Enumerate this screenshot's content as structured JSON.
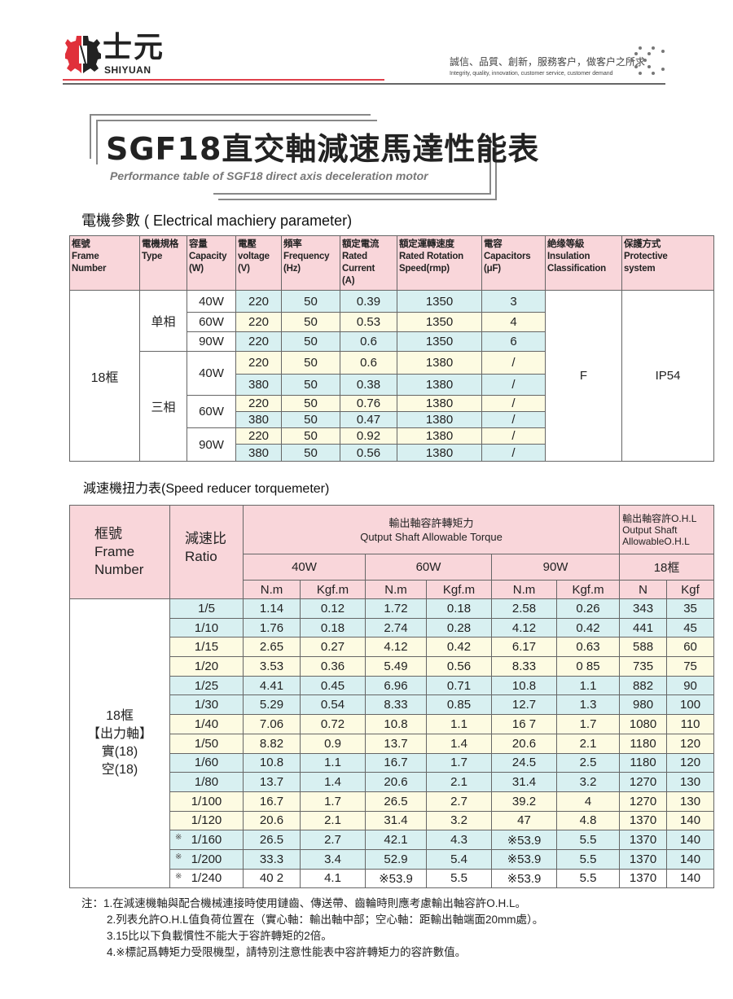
{
  "brand": {
    "name_cn": "士元",
    "name_en": "SHIYUAN",
    "slogan_cn": "誠信、品質、創新，服務客户，做客户之所求",
    "slogan_en": "Integrity, quality, innovation, customer service, customer demand",
    "colors": {
      "red": "#e0404a",
      "dark": "#222222"
    }
  },
  "title": {
    "cn": "SGF18直交軸減速馬達性能表",
    "en": "Performance table of SGF18 direct axis deceleration motor"
  },
  "electrical": {
    "section_title": "電機參數 ( Electrical machiery parameter)",
    "headers": [
      [
        "框號",
        "Frame",
        "Number"
      ],
      [
        "電機規格",
        "Type"
      ],
      [
        "容量",
        "Capacity",
        "(W)"
      ],
      [
        "電壓",
        "voltage",
        "(V)"
      ],
      [
        "頻率",
        "Frequency",
        "(Hz)"
      ],
      [
        "額定電流",
        "Rated",
        "Current",
        "(A)"
      ],
      [
        "額定運轉速度",
        "Rated Rotation",
        "Speed(rmp)"
      ],
      [
        "電容",
        "Capacitors",
        "(μF)"
      ],
      [
        "絶缘等級",
        "Insulation",
        "Classification"
      ],
      [
        "保護方式",
        "Protective",
        "system"
      ]
    ],
    "frame": "18框",
    "insulation": "F",
    "protection": "IP54",
    "phases": [
      {
        "label": "单相",
        "capacities": [
          {
            "label": "40W",
            "rows": [
              {
                "v": "220",
                "f": "50",
                "a": "0.39",
                "s": "1350",
                "c": "3",
                "color": "blue"
              }
            ]
          },
          {
            "label": "60W",
            "rows": [
              {
                "v": "220",
                "f": "50",
                "a": "0.53",
                "s": "1350",
                "c": "4",
                "color": "yel"
              }
            ]
          },
          {
            "label": "90W",
            "rows": [
              {
                "v": "220",
                "f": "50",
                "a": "0.6",
                "s": "1350",
                "c": "6",
                "color": "blue"
              }
            ]
          }
        ]
      },
      {
        "label": "三相",
        "capacities": [
          {
            "label": "40W",
            "rows": [
              {
                "v": "220",
                "f": "50",
                "a": "0.6",
                "s": "1380",
                "c": "/",
                "color": "yel"
              },
              {
                "v": "380",
                "f": "50",
                "a": "0.38",
                "s": "1380",
                "c": "/",
                "color": "blue"
              }
            ]
          },
          {
            "label": "60W",
            "rows": [
              {
                "v": "220",
                "f": "50",
                "a": "0.76",
                "s": "1380",
                "c": "/",
                "color": "yel"
              },
              {
                "v": "380",
                "f": "50",
                "a": "0.47",
                "s": "1380",
                "c": "/",
                "color": "blue"
              }
            ]
          },
          {
            "label": "90W",
            "rows": [
              {
                "v": "220",
                "f": "50",
                "a": "0.92",
                "s": "1380",
                "c": "/",
                "color": "yel"
              },
              {
                "v": "380",
                "f": "50",
                "a": "0.56",
                "s": "1380",
                "c": "/",
                "color": "blue"
              }
            ]
          }
        ]
      }
    ]
  },
  "torque": {
    "section_title": "減速機扭力表(Speed reducer torquemeter)",
    "h_frame": [
      "框號",
      "Frame",
      "Number"
    ],
    "h_ratio": [
      "減速比",
      "Ratio"
    ],
    "h_torque": [
      "輸出軸容許轉矩力",
      "Qutput Shaft Allowable Torque"
    ],
    "h_ohl": [
      "輸出軸容許O.H.L",
      "Output Shaft",
      "AllowableO.H.L"
    ],
    "powers": [
      "40W",
      "60W",
      "90W"
    ],
    "ohl_frame": "18框",
    "units": [
      "N.m",
      "Kgf.m",
      "N.m",
      "Kgf.m",
      "N.m",
      "Kgf.m",
      "N",
      "Kgf"
    ],
    "frame_label": [
      "18框",
      "【出力軸】",
      "實(18)",
      "空(18)"
    ],
    "rows": [
      {
        "mark": "",
        "ratio": "1/5",
        "vals": [
          "1.14",
          "0.12",
          "1.72",
          "0.18",
          "2.58",
          "0.26",
          "343",
          "35"
        ],
        "color": "blue"
      },
      {
        "mark": "",
        "ratio": "1/10",
        "vals": [
          "1.76",
          "0.18",
          "2.74",
          "0.28",
          "4.12",
          "0.42",
          "441",
          "45"
        ],
        "color": "blue"
      },
      {
        "mark": "",
        "ratio": "1/15",
        "vals": [
          "2.65",
          "0.27",
          "4.12",
          "0.42",
          "6.17",
          "0.63",
          "588",
          "60"
        ],
        "color": "yel"
      },
      {
        "mark": "",
        "ratio": "1/20",
        "vals": [
          "3.53",
          "0.36",
          "5.49",
          "0.56",
          "8.33",
          "0 85",
          "735",
          "75"
        ],
        "color": "yel"
      },
      {
        "mark": "",
        "ratio": "1/25",
        "vals": [
          "4.41",
          "0.45",
          "6.96",
          "0.71",
          "10.8",
          "1.1",
          "882",
          "90"
        ],
        "color": "blue"
      },
      {
        "mark": "",
        "ratio": "1/30",
        "vals": [
          "5.29",
          "0.54",
          "8.33",
          "0.85",
          "12.7",
          "1.3",
          "980",
          "100"
        ],
        "color": "blue"
      },
      {
        "mark": "",
        "ratio": "1/40",
        "vals": [
          "7.06",
          "0.72",
          "10.8",
          "1.1",
          "16 7",
          "1.7",
          "1080",
          "110"
        ],
        "color": "yel"
      },
      {
        "mark": "",
        "ratio": "1/50",
        "vals": [
          "8.82",
          "0.9",
          "13.7",
          "1.4",
          "20.6",
          "2.1",
          "1180",
          "120"
        ],
        "color": "yel"
      },
      {
        "mark": "",
        "ratio": "1/60",
        "vals": [
          "10.8",
          "1.1",
          "16.7",
          "1.7",
          "24.5",
          "2.5",
          "1180",
          "120"
        ],
        "color": "blue"
      },
      {
        "mark": "",
        "ratio": "1/80",
        "vals": [
          "13.7",
          "1.4",
          "20.6",
          "2.1",
          "31.4",
          "3.2",
          "1270",
          "130"
        ],
        "color": "blue"
      },
      {
        "mark": "",
        "ratio": "1/100",
        "vals": [
          "16.7",
          "1.7",
          "26.5",
          "2.7",
          "39.2",
          "4",
          "1270",
          "130"
        ],
        "color": "yel"
      },
      {
        "mark": "",
        "ratio": "1/120",
        "vals": [
          "20.6",
          "2.1",
          "31.4",
          "3.2",
          "47",
          "4.8",
          "1370",
          "140"
        ],
        "color": "yel"
      },
      {
        "mark": "※",
        "ratio": "1/160",
        "vals": [
          "26.5",
          "2.7",
          "42.1",
          "4.3",
          "※53.9",
          "5.5",
          "1370",
          "140"
        ],
        "color": "blue"
      },
      {
        "mark": "※",
        "ratio": "1/200",
        "vals": [
          "33.3",
          "3.4",
          "52.9",
          "5.4",
          "※53.9",
          "5.5",
          "1370",
          "140"
        ],
        "color": "blue"
      },
      {
        "mark": "※",
        "ratio": "1/240",
        "vals": [
          "40 2",
          "4.1",
          "※53.9",
          "5.5",
          "※53.9",
          "5.5",
          "1370",
          "140"
        ],
        "color": "wht"
      }
    ]
  },
  "notes": [
    "注：1.在減速機軸與配合機械連接時使用鏈齒、傳送帶、齒輪時則應考慮輸出軸容許O.H.L。",
    "2.列表允許O.H.L值負荷位置在（實心軸：輸出軸中部；空心軸：距輸出軸端面20mm處）。",
    "3.15比以下負載慣性不能大于容許轉矩的2倍。",
    "4.※標記爲轉矩力受限機型，請特別注意性能表中容許轉矩力的容許數值。"
  ]
}
